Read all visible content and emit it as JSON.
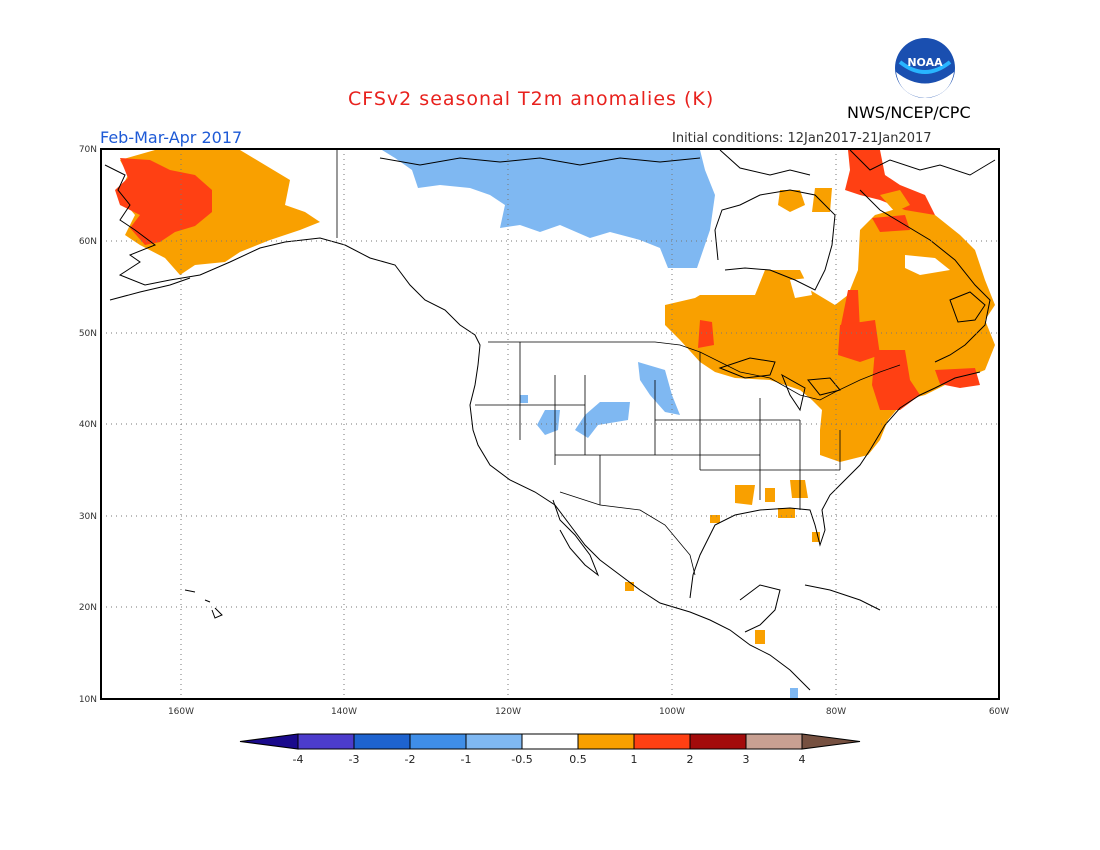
{
  "title": "CFSv2 seasonal T2m anomalies (K)",
  "season": "Feb-Mar-Apr 2017",
  "initial_conditions": "Initial conditions: 12Jan2017-21Jan2017",
  "agency": "NWS/NCEP/CPC",
  "logo_text": "NOAA",
  "lat_labels": [
    "70N",
    "60N",
    "50N",
    "40N",
    "30N",
    "20N",
    "10N"
  ],
  "lon_labels": [
    "160W",
    "140W",
    "120W",
    "100W",
    "80W",
    "60W"
  ],
  "colorbar": {
    "colors": [
      "#1a0a8c",
      "#4c3ccc",
      "#1e63cf",
      "#3f8ee8",
      "#7fb8f2",
      "#ffffff",
      "#f9a000",
      "#ff4013",
      "#a30b0b",
      "#c8a092",
      "#765040"
    ],
    "labels": [
      "-4",
      "-3",
      "-2",
      "-1",
      "-0.5",
      "0.5",
      "1",
      "2",
      "3",
      "4"
    ]
  },
  "colors": {
    "cool_light": "#7fb8f2",
    "warm_light": "#f9a000",
    "warm_mid": "#ff4013"
  }
}
